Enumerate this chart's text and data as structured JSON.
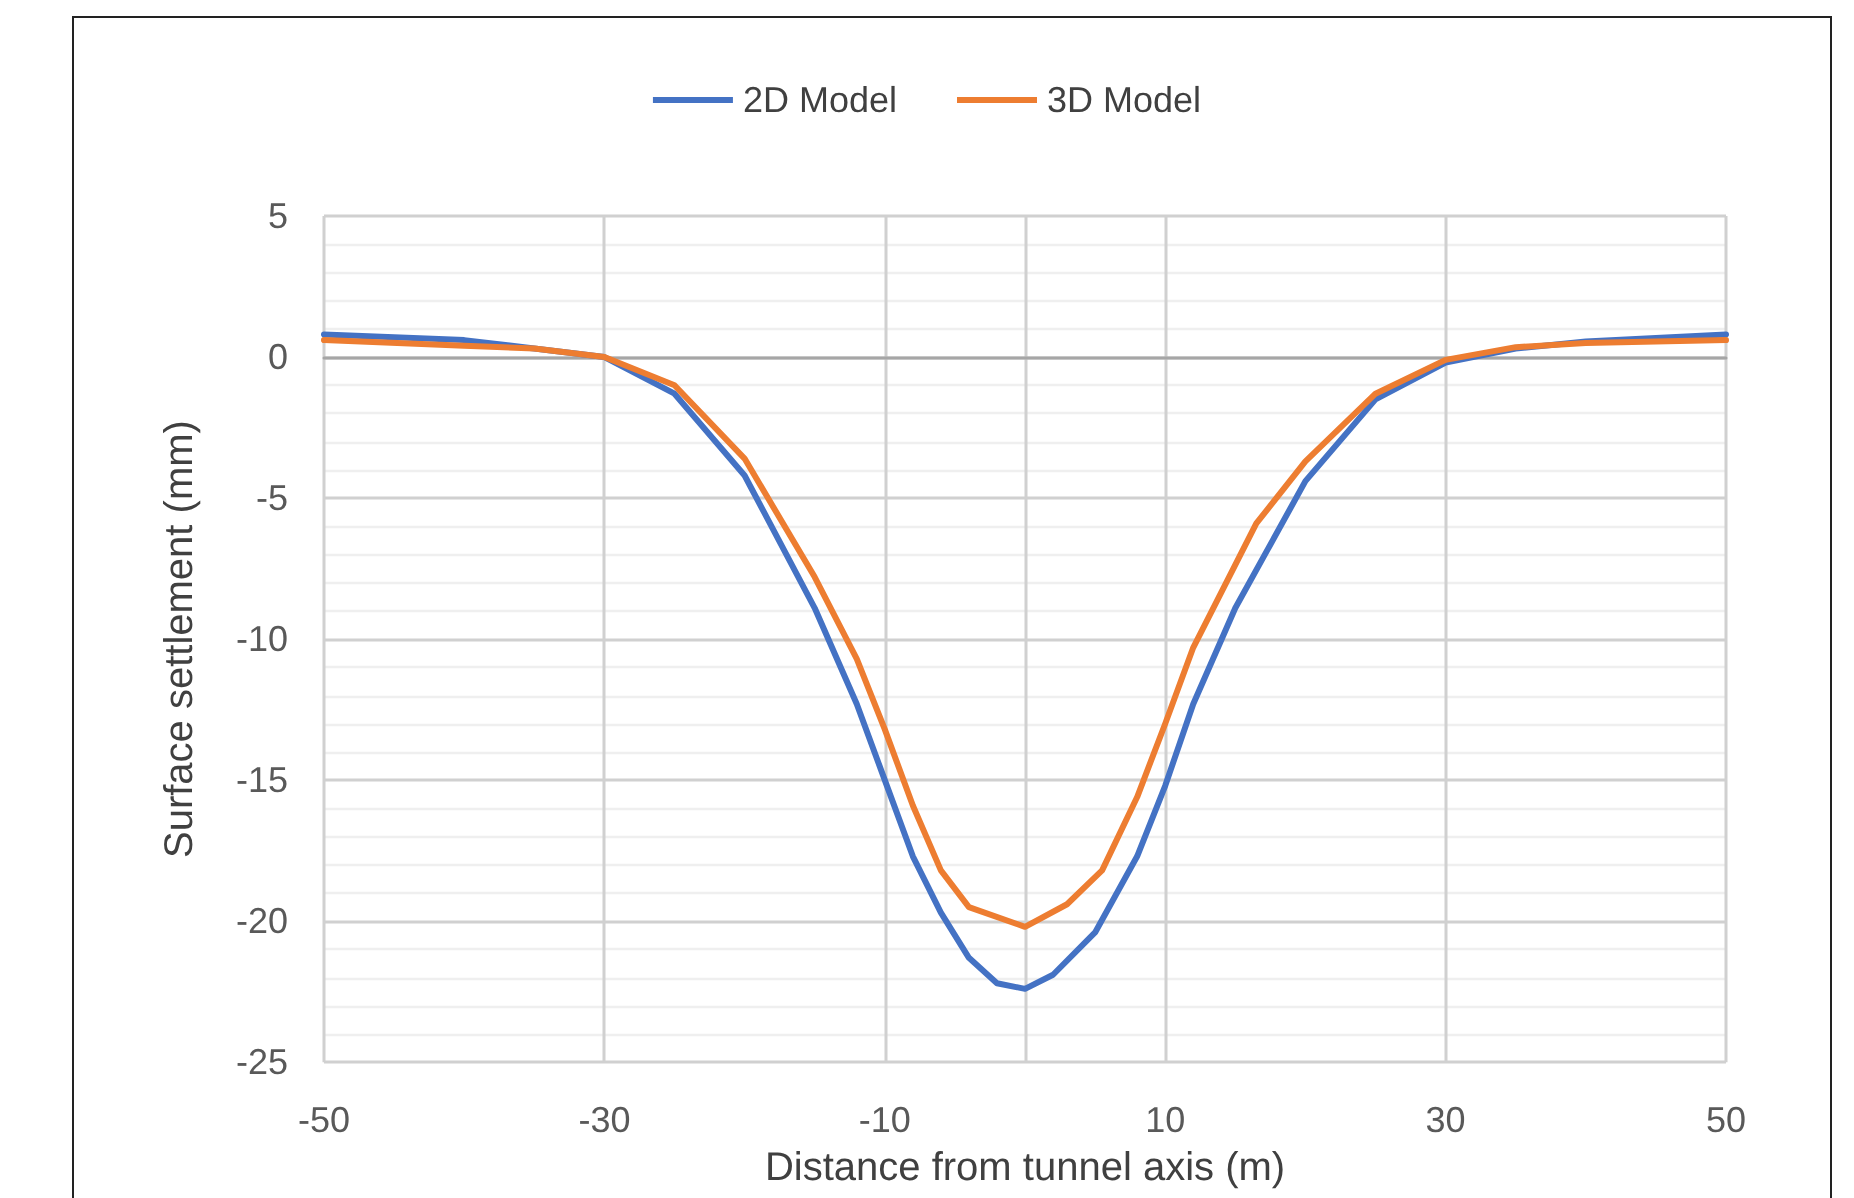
{
  "chart_data": {
    "type": "line",
    "xlabel": "Distance from tunnel axis (m)",
    "ylabel": "Surface settlement (mm)",
    "xlim": [
      -50,
      50
    ],
    "xticks": [
      -50,
      -30,
      -10,
      {
        "value": 0,
        "label": null
      },
      10,
      30,
      50
    ],
    "ylim": [
      -25,
      5
    ],
    "yticks": [
      -25,
      -20,
      -15,
      -10,
      -5,
      0,
      5
    ],
    "grid": true,
    "legend": "top",
    "marker": "none",
    "line_style": "solid",
    "series": [
      {
        "name": "2D Model",
        "color": "#4472c4",
        "x": [
          -50,
          -40,
          -35,
          -30,
          -25,
          -20,
          -15,
          -12,
          -10,
          -8,
          -6,
          -4,
          -2,
          0,
          2,
          5,
          8,
          10,
          12,
          15,
          20,
          25,
          30,
          35,
          40,
          50
        ],
        "values": [
          0.8,
          0.6,
          0.3,
          0,
          -1.3,
          -4.2,
          -8.9,
          -12.3,
          -15,
          -17.7,
          -19.7,
          -21.3,
          -22.2,
          -22.4,
          -21.9,
          -20.4,
          -17.7,
          -15.2,
          -12.3,
          -8.9,
          -4.4,
          -1.5,
          -0.2,
          0.3,
          0.55,
          0.8
        ]
      },
      {
        "name": "3D Model",
        "color": "#ed7d31",
        "x": [
          -50,
          -40,
          -35,
          -30,
          -25,
          -20,
          -15,
          -12,
          -10,
          -8,
          -6,
          -4,
          0,
          3,
          5.5,
          8,
          10,
          12,
          16.5,
          20,
          25,
          30,
          35,
          40,
          50
        ],
        "values": [
          0.6,
          0.4,
          0.3,
          0,
          -1,
          -3.6,
          -7.8,
          -10.7,
          -13.2,
          -15.9,
          -18.2,
          -19.5,
          -20.2,
          -19.4,
          -18.2,
          -15.6,
          -13,
          -10.3,
          -5.9,
          -3.7,
          -1.3,
          -0.1,
          0.35,
          0.5,
          0.6
        ]
      }
    ]
  }
}
